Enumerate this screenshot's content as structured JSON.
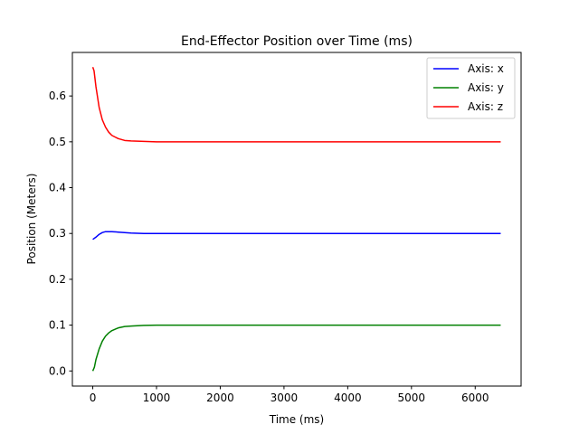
{
  "chart_data": {
    "type": "line",
    "title": "End-Effector Position over Time (ms)",
    "xlabel": "Time (ms)",
    "ylabel": "Position (Meters)",
    "xlim": [
      -320,
      6720
    ],
    "ylim": [
      -0.033,
      0.695
    ],
    "x_ticks": [
      0,
      1000,
      2000,
      3000,
      4000,
      5000,
      6000
    ],
    "x_tick_labels": [
      "0",
      "1000",
      "2000",
      "3000",
      "4000",
      "5000",
      "6000"
    ],
    "y_ticks": [
      0.0,
      0.1,
      0.2,
      0.3,
      0.4,
      0.5,
      0.6
    ],
    "y_tick_labels": [
      "0.0",
      "0.1",
      "0.2",
      "0.3",
      "0.4",
      "0.5",
      "0.6"
    ],
    "grid": false,
    "legend_position": "top-right",
    "series": [
      {
        "name": "Axis: x",
        "color": "#0000ff",
        "x": [
          0,
          50,
          100,
          150,
          200,
          250,
          300,
          400,
          500,
          600,
          800,
          1000,
          1500,
          2000,
          3000,
          4000,
          5000,
          6000,
          6400
        ],
        "y": [
          0.287,
          0.292,
          0.298,
          0.302,
          0.304,
          0.304,
          0.304,
          0.303,
          0.302,
          0.301,
          0.3,
          0.3,
          0.3,
          0.3,
          0.3,
          0.3,
          0.3,
          0.3,
          0.3
        ]
      },
      {
        "name": "Axis: y",
        "color": "#008000",
        "x": [
          0,
          25,
          50,
          100,
          150,
          200,
          250,
          300,
          400,
          500,
          600,
          800,
          1000,
          1500,
          2000,
          3000,
          4000,
          5000,
          6000,
          6400
        ],
        "y": [
          0.0,
          0.008,
          0.025,
          0.048,
          0.065,
          0.076,
          0.083,
          0.088,
          0.094,
          0.097,
          0.098,
          0.0995,
          0.1,
          0.1,
          0.1,
          0.1,
          0.1,
          0.1,
          0.1,
          0.1
        ],
        "label": "Axis: y"
      },
      {
        "name": "Axis: z",
        "color": "#ff0000",
        "x": [
          0,
          20,
          50,
          100,
          150,
          200,
          250,
          300,
          400,
          500,
          600,
          800,
          1000,
          1500,
          2000,
          3000,
          4000,
          5000,
          6000,
          6400
        ],
        "y": [
          0.663,
          0.655,
          0.62,
          0.575,
          0.548,
          0.532,
          0.521,
          0.514,
          0.507,
          0.503,
          0.502,
          0.501,
          0.5,
          0.5,
          0.5,
          0.5,
          0.5,
          0.5,
          0.5,
          0.5
        ]
      }
    ]
  }
}
